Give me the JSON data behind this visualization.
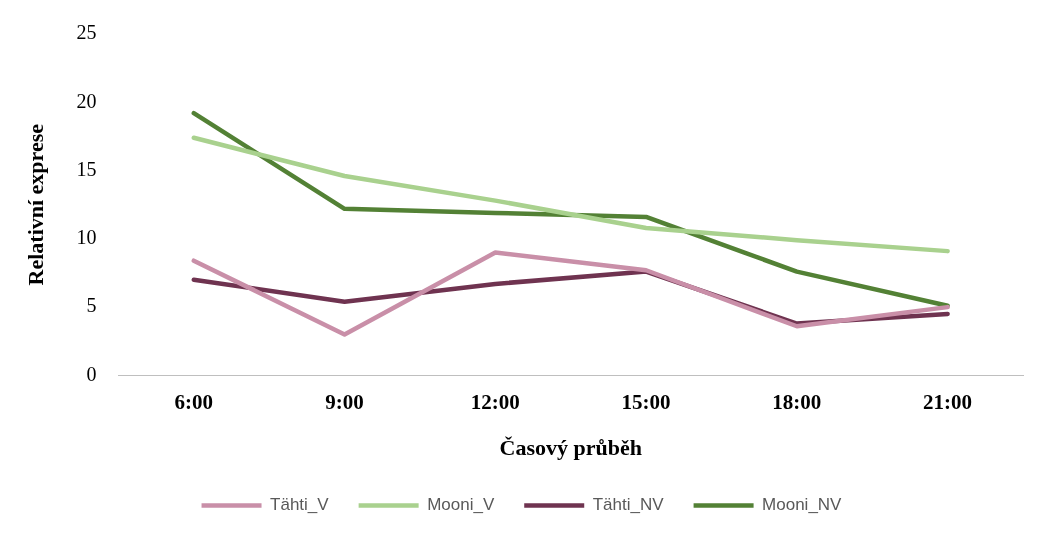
{
  "chart_data": {
    "type": "line",
    "xlabel": "Časový průběh",
    "ylabel": "Relativní exprese",
    "categories": [
      "6:00",
      "9:00",
      "12:00",
      "15:00",
      "18:00",
      "21:00"
    ],
    "series": [
      {
        "name": "Tähti_V",
        "color": "#c98fa8",
        "values": [
          8.4,
          3.0,
          9.0,
          7.7,
          3.6,
          5.0
        ]
      },
      {
        "name": "Mooni_V",
        "color": "#a9d18e",
        "values": [
          17.4,
          14.6,
          12.8,
          10.8,
          9.9,
          9.1
        ]
      },
      {
        "name": "Tähti_NV",
        "color": "#6f3350",
        "values": [
          7.0,
          5.4,
          6.7,
          7.6,
          3.8,
          4.5
        ]
      },
      {
        "name": "Mooni_NV",
        "color": "#538135",
        "values": [
          19.2,
          12.2,
          11.9,
          11.6,
          7.6,
          5.1
        ]
      }
    ],
    "ylim": [
      0,
      25
    ],
    "yticks": [
      0,
      5,
      10,
      15,
      20,
      25
    ],
    "legend": "bottom",
    "marker": "none",
    "line_style": "solid"
  }
}
